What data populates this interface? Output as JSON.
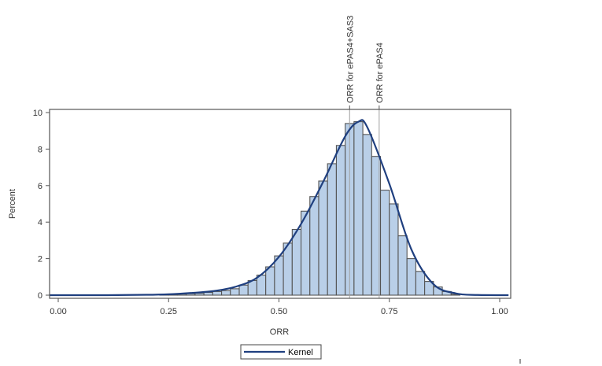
{
  "chart_data": {
    "type": "bar",
    "subtype": "histogram_with_kernel_density",
    "title": "",
    "xlabel": "ORR",
    "ylabel": "Percent",
    "xlim": [
      -0.02,
      1.02
    ],
    "ylim": [
      0,
      10
    ],
    "xticks": [
      "0.00",
      "0.25",
      "0.50",
      "0.75",
      "1.00"
    ],
    "yticks": [
      "0",
      "2",
      "4",
      "6",
      "8",
      "10"
    ],
    "grid": false,
    "bin_width": 0.02,
    "bins": [
      0.24,
      0.26,
      0.28,
      0.3,
      0.32,
      0.34,
      0.36,
      0.38,
      0.4,
      0.42,
      0.44,
      0.46,
      0.48,
      0.5,
      0.52,
      0.54,
      0.56,
      0.58,
      0.6,
      0.62,
      0.64,
      0.66,
      0.68,
      0.7,
      0.72,
      0.74,
      0.76,
      0.78,
      0.8,
      0.82,
      0.84,
      0.86,
      0.88,
      0.9
    ],
    "values": [
      0.02,
      0.04,
      0.06,
      0.08,
      0.1,
      0.15,
      0.2,
      0.25,
      0.35,
      0.55,
      0.8,
      1.1,
      1.55,
      2.15,
      2.85,
      3.6,
      4.6,
      5.4,
      6.25,
      7.2,
      8.2,
      9.4,
      9.5,
      8.8,
      7.6,
      5.75,
      5.0,
      3.25,
      2.0,
      1.3,
      0.75,
      0.45,
      0.2,
      0.05
    ],
    "series": [
      {
        "name": "Histogram",
        "kind": "bar",
        "color": "#b9cfe8",
        "edge_color": "#555555"
      },
      {
        "name": "Kernel",
        "kind": "line",
        "color": "#1f3f7f",
        "x": [
          -0.02,
          0.1,
          0.2,
          0.25,
          0.3,
          0.35,
          0.4,
          0.45,
          0.5,
          0.55,
          0.6,
          0.65,
          0.68,
          0.7,
          0.75,
          0.8,
          0.85,
          0.9,
          0.95,
          1.02
        ],
        "y": [
          0,
          0.0,
          0.02,
          0.05,
          0.12,
          0.22,
          0.45,
          0.95,
          2.1,
          3.9,
          6.2,
          8.7,
          9.5,
          9.2,
          6.1,
          2.5,
          0.6,
          0.1,
          0.01,
          0
        ]
      }
    ],
    "reference_lines": [
      {
        "x": 0.66,
        "label": "ORR for ePAS4+SAS3",
        "color": "#a0a0a0"
      },
      {
        "x": 0.727,
        "label": "ORR for ePAS4",
        "color": "#a0a0a0"
      }
    ],
    "legend": {
      "position": "bottom-center",
      "entries": [
        "Kernel"
      ]
    }
  },
  "labels": {
    "xlabel": "ORR",
    "ylabel": "Percent",
    "legend_kernel": "Kernel",
    "ref1": "ORR for ePAS4+SAS3",
    "ref2": "ORR for ePAS4"
  }
}
